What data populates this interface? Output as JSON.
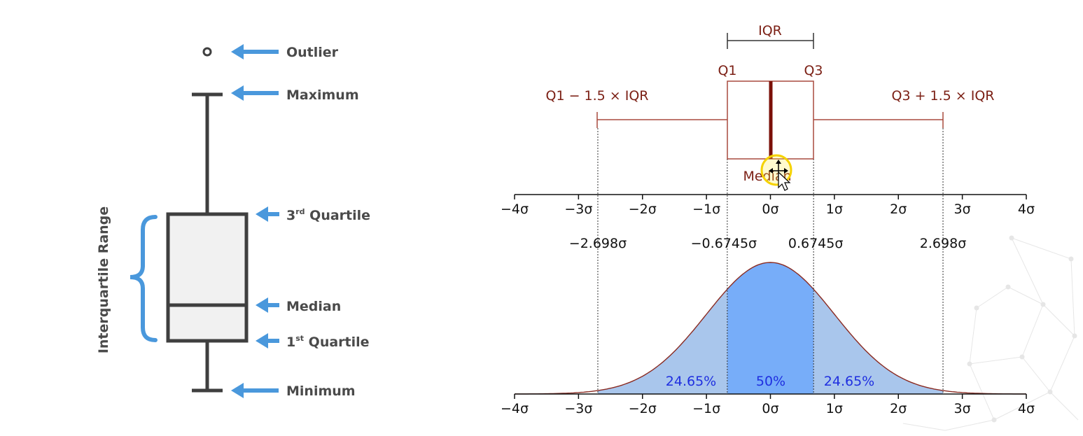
{
  "left_diagram": {
    "side_label": "Interquartile Range",
    "outlier_label": "Outlier",
    "maximum_label": "Maximum",
    "q3_num": "3",
    "q3_sup": "rd",
    "q3_rest": " Quartile",
    "median_label": "Median",
    "q1_num": "1",
    "q1_sup": "st",
    "q1_rest": " Quartile",
    "minimum_label": "Minimum"
  },
  "right_diagram": {
    "iqr_label": "IQR",
    "q1_label": "Q1",
    "q3_label": "Q3",
    "lower_fence_label": "Q1 − 1.5 × IQR",
    "upper_fence_label": "Q3 + 1.5 × IQR",
    "median_label": "Median",
    "axis_ticks": [
      "−4σ",
      "−3σ",
      "−2σ",
      "−1σ",
      "0σ",
      "1σ",
      "2σ",
      "3σ",
      "4σ"
    ],
    "boundary_labels": [
      "−2.698σ",
      "−0.6745σ",
      "0.6745σ",
      "2.698σ"
    ],
    "pct_left": "24.65%",
    "pct_center": "50%",
    "pct_right": "24.65%"
  },
  "chart_data": {
    "type": "area",
    "distribution": "standard normal",
    "xlim": [
      -4,
      4
    ],
    "ticks": [
      -4,
      -3,
      -2,
      -1,
      0,
      1,
      2,
      3,
      4
    ],
    "boundaries": [
      -2.698,
      -0.6745,
      0.6745,
      2.698
    ],
    "regions": [
      {
        "from": -2.698,
        "to": -0.6745,
        "percent": 24.65
      },
      {
        "from": -0.6745,
        "to": 0.6745,
        "percent": 50
      },
      {
        "from": 0.6745,
        "to": 2.698,
        "percent": 24.65
      }
    ]
  },
  "colors": {
    "arrow_blue": "#4a98dc",
    "box_red": "#7b1f14",
    "curve_fill_light": "#a9c6ec",
    "curve_fill_center": "#77adf9"
  }
}
